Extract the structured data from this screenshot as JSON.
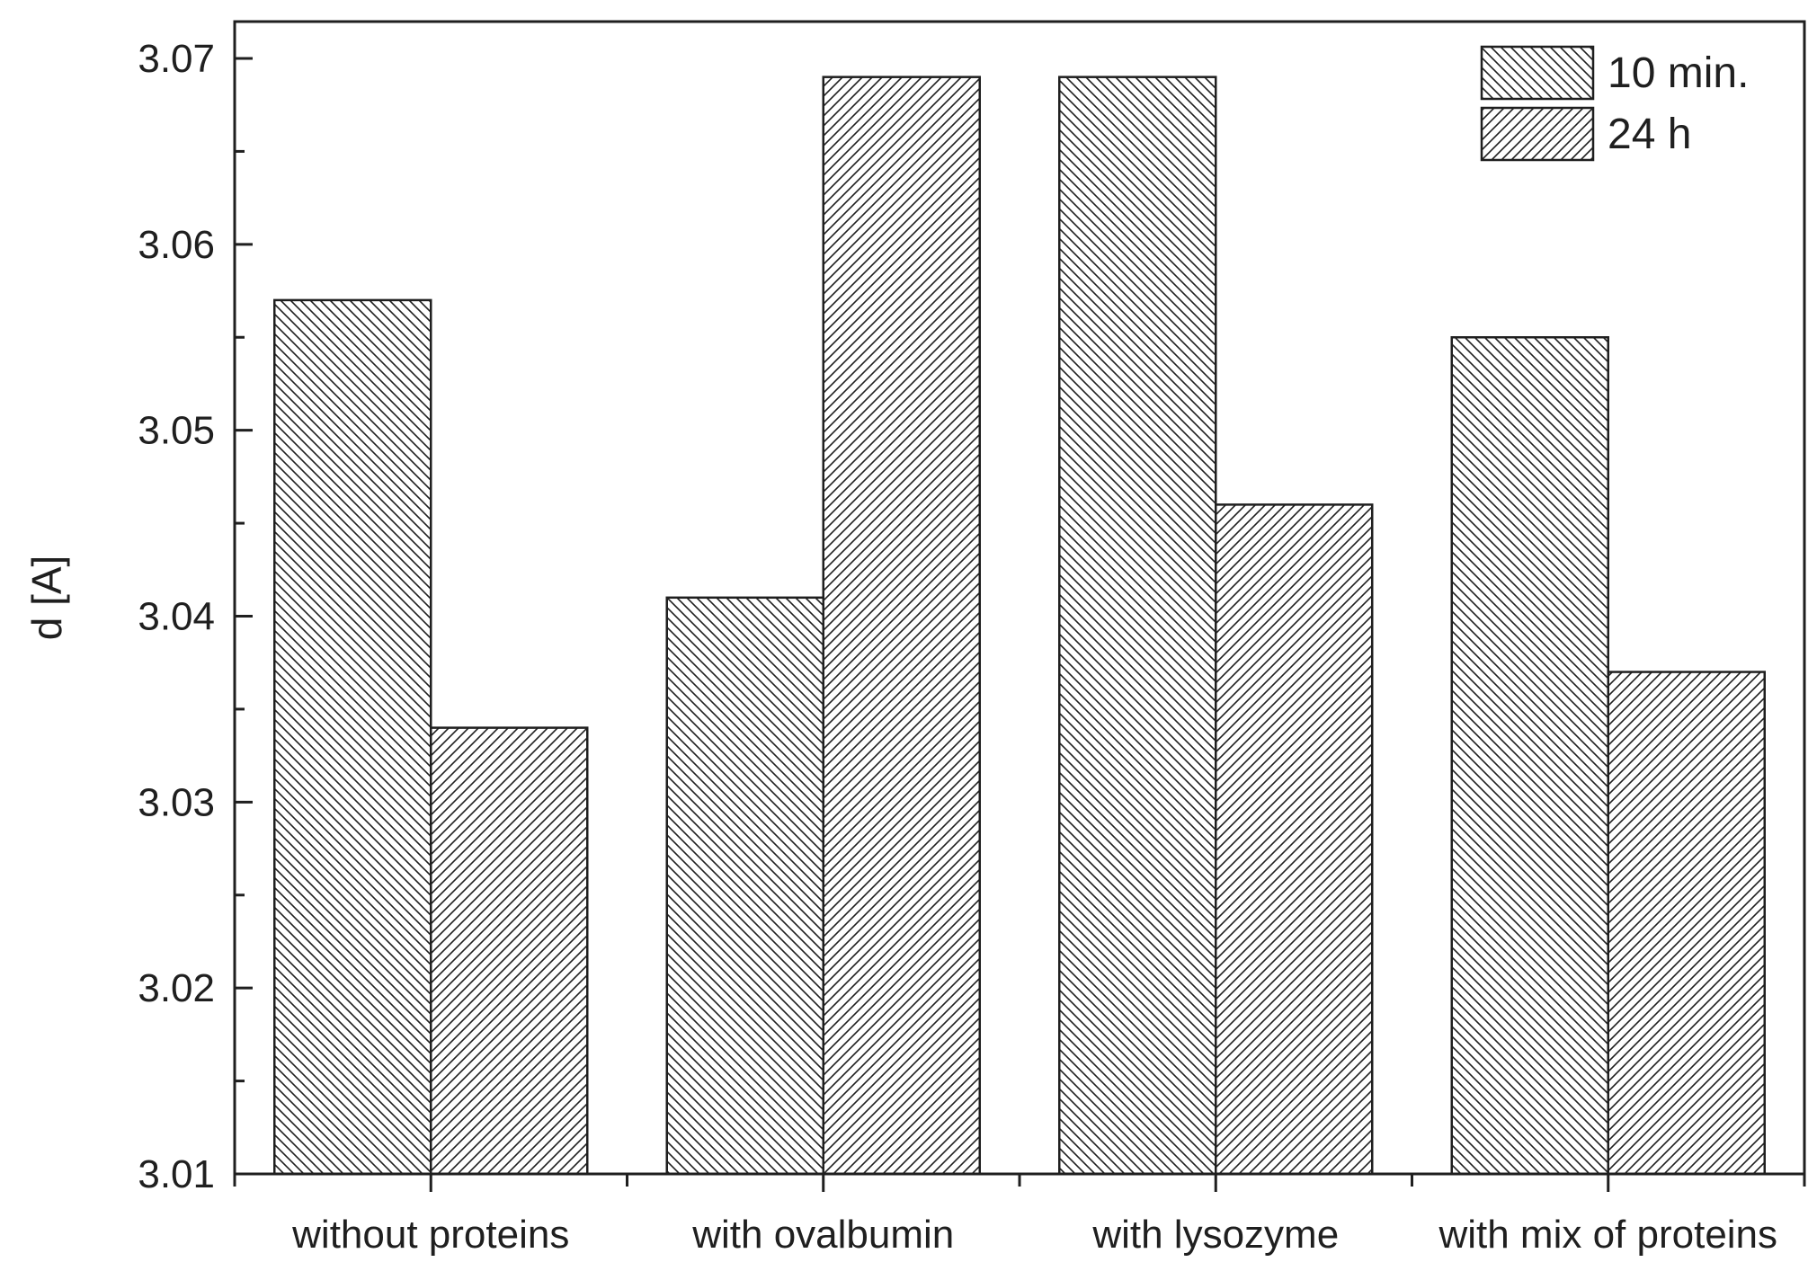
{
  "chart_data": {
    "type": "bar",
    "title": "",
    "xlabel": "",
    "ylabel": "d [A]",
    "categories": [
      "without proteins",
      "with ovalbumin",
      "with lysozyme",
      "with mix of proteins"
    ],
    "series": [
      {
        "name": "10 min.",
        "values": [
          3.057,
          3.041,
          3.069,
          3.055
        ]
      },
      {
        "name": "24 h",
        "values": [
          3.034,
          3.069,
          3.046,
          3.037
        ]
      }
    ],
    "ylim": [
      3.01,
      3.07
    ],
    "yticks": [
      "3.01",
      "3.02",
      "3.03",
      "3.04",
      "3.05",
      "3.06",
      "3.07"
    ],
    "grid": false,
    "legend_position": "top-right"
  },
  "style": {
    "stroke_color": "#1f1f1f",
    "fill_color": "#ffffff"
  }
}
